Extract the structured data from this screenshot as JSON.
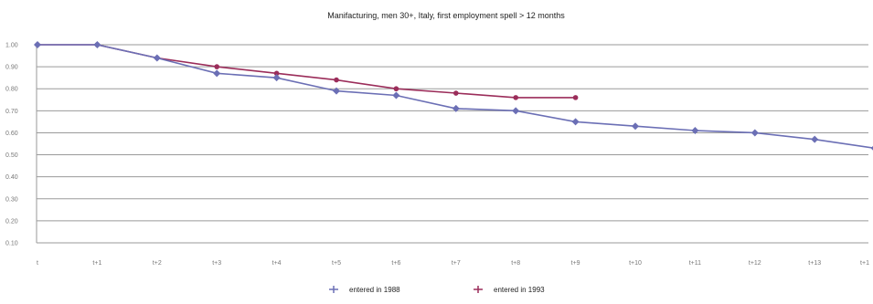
{
  "chart_data": {
    "type": "line",
    "title": "Manifacturing, men 30+, Italy, first employment spell > 12 months",
    "categories": [
      "t",
      "t+1",
      "t+2",
      "t+3",
      "t+4",
      "t+5",
      "t+6",
      "t+7",
      "t+8",
      "t+9",
      "t+10",
      "t+11",
      "t+12",
      "t+13",
      "t+1"
    ],
    "ytick_labels": [
      "1.00",
      "0.90",
      "0.80",
      "0.70",
      "0.60",
      "0.50",
      "0.40",
      "0.30",
      "0.20",
      "0.10"
    ],
    "ylim": [
      0.1,
      1.0
    ],
    "grid": true,
    "legend_position": "bottom",
    "series": [
      {
        "name": "entered in 1988",
        "color": "#6b6fb5",
        "marker": "diamond",
        "values": [
          1.0,
          1.0,
          0.94,
          0.87,
          0.85,
          0.79,
          0.77,
          0.71,
          0.7,
          0.65,
          0.63,
          0.61,
          0.6,
          0.57,
          0.53
        ]
      },
      {
        "name": "entered in 1993",
        "color": "#9b2d5a",
        "marker": "circle",
        "values": [
          1.0,
          1.0,
          0.94,
          0.9,
          0.87,
          0.84,
          0.8,
          0.78,
          0.76,
          0.76,
          null,
          null,
          null,
          null,
          null
        ]
      }
    ]
  }
}
